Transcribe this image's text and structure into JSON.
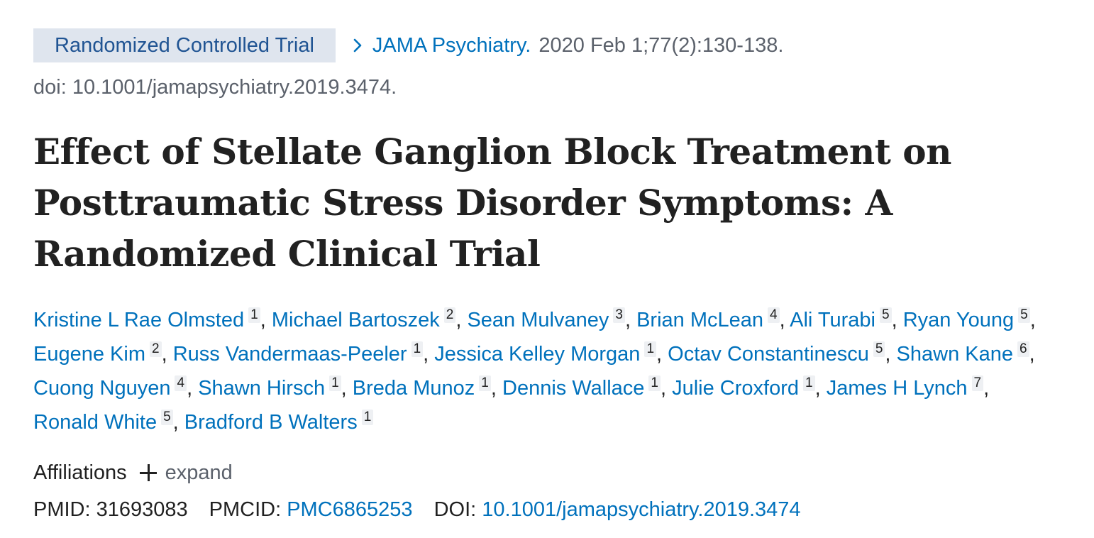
{
  "article_type": "Randomized Controlled Trial",
  "journal": "JAMA Psychiatry.",
  "citation": "2020 Feb 1;77(2):130-138.",
  "doi_line": "doi: 10.1001/jamapsychiatry.2019.3474.",
  "title": "Effect of Stellate Ganglion Block Treatment on Posttraumatic Stress Disorder Symptoms: A Randomized Clinical Trial",
  "authors": [
    {
      "name": "Kristine L Rae Olmsted",
      "aff": "1"
    },
    {
      "name": "Michael Bartoszek",
      "aff": "2"
    },
    {
      "name": "Sean Mulvaney",
      "aff": "3"
    },
    {
      "name": "Brian McLean",
      "aff": "4"
    },
    {
      "name": "Ali Turabi",
      "aff": "5"
    },
    {
      "name": "Ryan Young",
      "aff": "5"
    },
    {
      "name": "Eugene Kim",
      "aff": "2"
    },
    {
      "name": "Russ Vandermaas-Peeler",
      "aff": "1"
    },
    {
      "name": "Jessica Kelley Morgan",
      "aff": "1"
    },
    {
      "name": "Octav Constantinescu",
      "aff": "5"
    },
    {
      "name": "Shawn Kane",
      "aff": "6"
    },
    {
      "name": "Cuong Nguyen",
      "aff": "4"
    },
    {
      "name": "Shawn Hirsch",
      "aff": "1"
    },
    {
      "name": "Breda Munoz",
      "aff": "1"
    },
    {
      "name": "Dennis Wallace",
      "aff": "1"
    },
    {
      "name": "Julie Croxford",
      "aff": "1"
    },
    {
      "name": "James H Lynch",
      "aff": "7"
    },
    {
      "name": "Ronald White",
      "aff": "5"
    },
    {
      "name": "Bradford B Walters",
      "aff": "1"
    }
  ],
  "affiliations": {
    "label": "Affiliations",
    "expand_label": "expand"
  },
  "identifiers": {
    "pmid_label": "PMID:",
    "pmid": "31693083",
    "pmcid_label": "PMCID:",
    "pmcid": "PMC6865253",
    "doi_label": "DOI:",
    "doi": "10.1001/jamapsychiatry.2019.3474"
  },
  "colors": {
    "link": "#0071bc",
    "badge_bg": "#dfe5ee",
    "badge_text": "#205493",
    "muted": "#5b616b"
  },
  "icons": [
    "chevron-right-icon",
    "plus-icon"
  ]
}
